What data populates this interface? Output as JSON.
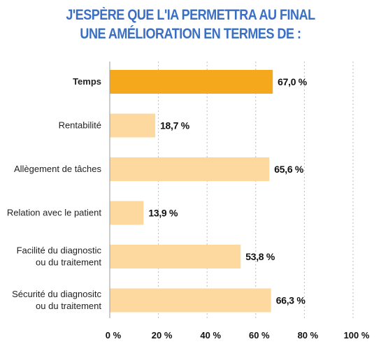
{
  "chart_data": {
    "type": "bar",
    "orientation": "horizontal",
    "title_lines": [
      "J'ESPÈRE QUE L'IA PERMETTRA AU FINAL",
      "UNE AMÉLIORATION EN TERMES DE :"
    ],
    "categories": [
      [
        "Temps"
      ],
      [
        "Rentabilité"
      ],
      [
        "Allègement de tâches"
      ],
      [
        "Relation avec le patient"
      ],
      [
        "Facilité du diagnostic",
        "ou du traitement"
      ],
      [
        "Sécurité du diagnositc",
        "ou du traitement"
      ]
    ],
    "values": [
      67.0,
      18.7,
      65.6,
      13.9,
      53.8,
      66.3
    ],
    "value_labels": [
      "67,0 %",
      "18,7 %",
      "65,6 %",
      "13,9 %",
      "53,8 %",
      "66,3 %"
    ],
    "highlight_index": 0,
    "xlim": [
      0,
      100
    ],
    "xticks": [
      0,
      20,
      40,
      60,
      80,
      100
    ],
    "xtick_labels": [
      "0 %",
      "20 %",
      "40 %",
      "60 %",
      "80 %",
      "100 %"
    ],
    "grid": "vertical-dashed",
    "colors": {
      "highlight": "#f5a81c",
      "bar": "#fdd9a0",
      "title": "#3a6fc4",
      "grid": "#bdbdbd"
    }
  }
}
